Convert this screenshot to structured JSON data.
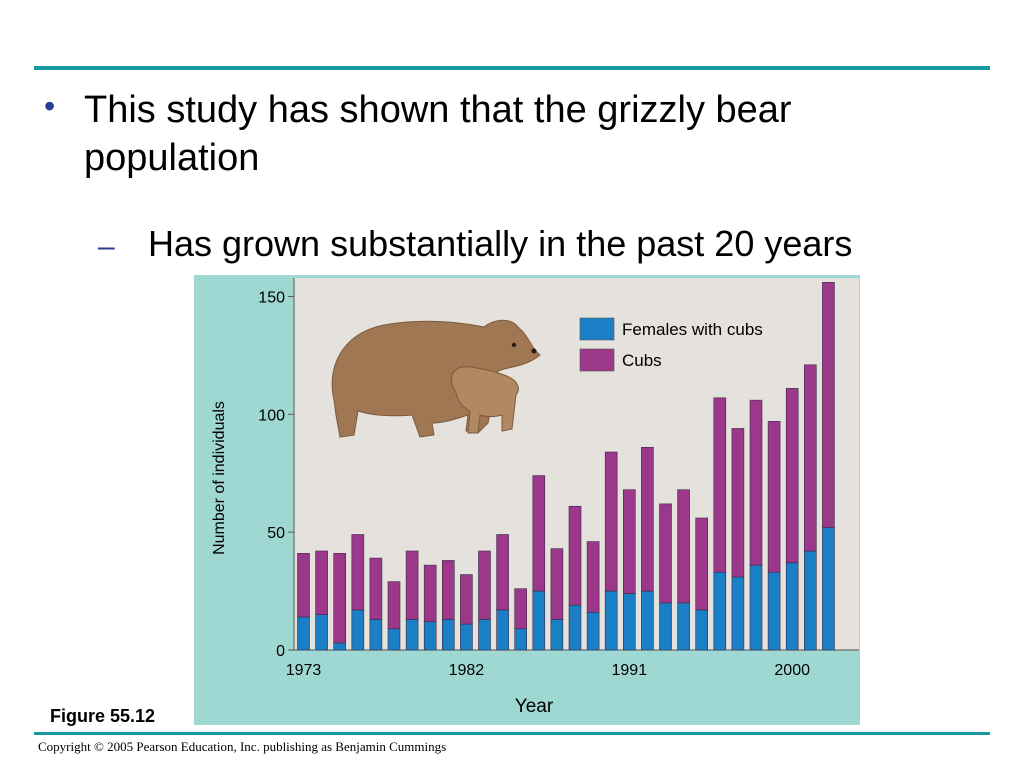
{
  "slide": {
    "bullet": "This study has shown that the grizzly bear population",
    "sub_bullet": "Has grown substantially in the past 20 years",
    "figure_label": "Figure 55.12",
    "copyright": "Copyright © 2005 Pearson Education, Inc. publishing as Benjamin Cummings"
  },
  "colors": {
    "accent": "#179aa0",
    "bullet": "#2b3d8f",
    "panel": "#9fd8d3",
    "plot_bg": "#e5e1dc"
  },
  "chart_data": {
    "type": "bar",
    "stacked": true,
    "title": "",
    "xlabel": "Year",
    "ylabel": "Number of individuals",
    "ylim": [
      0,
      160
    ],
    "yticks": [
      0,
      50,
      100,
      150
    ],
    "x": [
      1973,
      1974,
      1975,
      1976,
      1977,
      1978,
      1979,
      1980,
      1981,
      1982,
      1983,
      1984,
      1985,
      1986,
      1987,
      1988,
      1989,
      1990,
      1991,
      1992,
      1993,
      1994,
      1995,
      1996,
      1997,
      1998,
      1999,
      2000,
      2001,
      2002
    ],
    "xtick_labels": [
      {
        "x": 1973,
        "label": "1973"
      },
      {
        "x": 1982,
        "label": "1982"
      },
      {
        "x": 1991,
        "label": "1991"
      },
      {
        "x": 2000,
        "label": "2000"
      }
    ],
    "legend_position": "top-right",
    "series": [
      {
        "name": "Females with cubs",
        "color": "#1a7fc4",
        "values": [
          14,
          15,
          3,
          17,
          13,
          9,
          13,
          12,
          13,
          11,
          13,
          17,
          9,
          25,
          13,
          19,
          16,
          25,
          24,
          25,
          20,
          20,
          17,
          33,
          31,
          36,
          33,
          37,
          42,
          52
        ]
      },
      {
        "name": "Cubs",
        "color": "#9c3889",
        "values": [
          27,
          27,
          38,
          32,
          26,
          20,
          29,
          24,
          25,
          21,
          29,
          32,
          17,
          49,
          30,
          42,
          30,
          59,
          44,
          61,
          42,
          48,
          39,
          74,
          63,
          70,
          64,
          74,
          79,
          104
        ]
      }
    ]
  }
}
